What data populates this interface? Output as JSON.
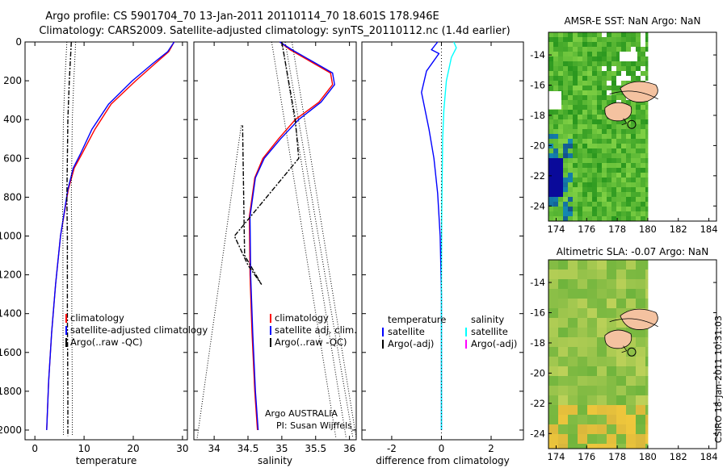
{
  "header": {
    "line1": "Argo profile: CS 5901704_70 13-Jan-2011 20110114_70 18.601S 178.946E",
    "line2": "Climatology: CARS2009. Satellite-adjusted climatology: synTS_20110112.nc (1.4d earlier)"
  },
  "side_label": "CSIRO 18-Jan-2011 10:31:03",
  "colors": {
    "climatology": "#ff0000",
    "satellite": "#0000ff",
    "argo": "#000000",
    "salinity_satellite": "#00ffff",
    "salinity_argo": "#ff00ff"
  },
  "chart_data": [
    {
      "type": "line",
      "xlabel": "temperature",
      "ylabel": "",
      "xlim": [
        -2,
        31
      ],
      "ylim": [
        2050,
        0
      ],
      "xticks": [
        "0",
        "10",
        "20",
        "30"
      ],
      "yticks": [
        "0",
        "200",
        "400",
        "600",
        "800",
        "1000",
        "1200",
        "1400",
        "1600",
        "1800",
        "2000"
      ],
      "legend": [
        "climatology",
        "satellite-adjusted climatology",
        "Argo(..raw -QC)"
      ],
      "series": [
        {
          "name": "climatology",
          "x": [
            28.3,
            27.2,
            24.5,
            20.5,
            15.5,
            12.2,
            9.5,
            8.0,
            6.8,
            5.2,
            4.2,
            3.4,
            2.8,
            2.4
          ],
          "y": [
            0,
            50,
            110,
            200,
            320,
            450,
            580,
            650,
            760,
            1000,
            1250,
            1500,
            1750,
            2000
          ]
        },
        {
          "name": "satellite-adjusted climatology",
          "x": [
            28.3,
            27.0,
            24.0,
            19.8,
            15.0,
            11.6,
            9.2,
            7.8,
            6.7,
            5.2,
            4.2,
            3.4,
            2.8,
            2.4
          ],
          "y": [
            0,
            50,
            110,
            200,
            320,
            450,
            580,
            650,
            760,
            1000,
            1250,
            1500,
            1750,
            2000
          ]
        },
        {
          "name": "Argo(..raw -QC)",
          "x": [
            7.4,
            7.0,
            6.7,
            6.6,
            6.5,
            6.6,
            6.6,
            6.7,
            6.7
          ],
          "y": [
            0,
            200,
            400,
            600,
            800,
            1000,
            1400,
            1800,
            2030
          ]
        }
      ]
    },
    {
      "type": "line",
      "xlabel": "salinity",
      "ylabel": "",
      "xlim": [
        33.7,
        36.1
      ],
      "ylim": [
        2050,
        0
      ],
      "xticks": [
        "34",
        "34.5",
        "35",
        "35.5",
        "36"
      ],
      "legend": [
        "climatology",
        "satellite adj. clim.",
        "Argo(..raw -QC)"
      ],
      "annotations": [
        "Argo AUSTRALIA",
        "PI: Susan Wijffels"
      ],
      "series": [
        {
          "name": "climatology",
          "x": [
            34.97,
            35.12,
            35.42,
            35.72,
            35.75,
            35.55,
            35.2,
            34.95,
            34.72,
            34.6,
            34.52,
            34.53,
            34.56,
            34.6,
            34.64
          ],
          "y": [
            0,
            40,
            100,
            160,
            220,
            310,
            400,
            500,
            600,
            700,
            900,
            1200,
            1500,
            1800,
            2000
          ]
        },
        {
          "name": "satellite adj. clim.",
          "x": [
            34.97,
            35.15,
            35.45,
            35.75,
            35.78,
            35.58,
            35.25,
            34.98,
            34.74,
            34.61,
            34.53,
            34.54,
            34.57,
            34.61,
            34.65
          ],
          "y": [
            0,
            40,
            100,
            160,
            220,
            310,
            400,
            500,
            600,
            700,
            900,
            1200,
            1500,
            1800,
            2000
          ]
        },
        {
          "name": "Argo(..raw -QC)",
          "x": [
            35.0,
            35.1,
            35.2,
            35.25,
            34.3,
            34.5,
            34.7,
            34.45,
            34.42
          ],
          "y": [
            0,
            200,
            400,
            600,
            1000,
            1150,
            1250,
            1100,
            430
          ]
        }
      ]
    },
    {
      "type": "line",
      "xlabel": "difference from climatology",
      "ylabel": "",
      "xlim": [
        -3.2,
        3.3
      ],
      "ylim": [
        2050,
        0
      ],
      "xticks": [
        "-2",
        "0",
        "2"
      ],
      "legend": [
        "temperature",
        "satellite",
        "Argo(-adj)",
        "salinity",
        "satellite",
        "Argo(-adj)"
      ],
      "series": [
        {
          "name": "temperature satellite",
          "x": [
            -0.15,
            -0.4,
            -0.1,
            -0.6,
            -0.8,
            -0.5,
            -0.3,
            -0.15,
            -0.05,
            0.0,
            0.0,
            0.0
          ],
          "y": [
            0,
            40,
            60,
            150,
            260,
            450,
            600,
            780,
            1000,
            1300,
            1700,
            2000
          ]
        },
        {
          "name": "salinity satellite",
          "x": [
            0.5,
            0.6,
            0.4,
            0.2,
            0.1,
            0.05,
            0.03,
            0.01,
            0.0,
            0.0,
            0.0
          ],
          "y": [
            0,
            30,
            80,
            200,
            350,
            500,
            700,
            900,
            1200,
            1600,
            2000
          ]
        }
      ]
    },
    {
      "type": "heatmap",
      "title": "AMSR-E SST: NaN Argo: NaN",
      "xticks": [
        "174",
        "176",
        "178",
        "180",
        "182",
        "184"
      ],
      "yticks": [
        "-14",
        "-16",
        "-18",
        "-20",
        "-22",
        "-24"
      ],
      "xlim": [
        173.5,
        184.5
      ],
      "ylim": [
        -25,
        -12.5
      ]
    },
    {
      "type": "heatmap",
      "title": "Altimetric SLA: -0.07 Argo: NaN",
      "xticks": [
        "174",
        "176",
        "178",
        "180",
        "182",
        "184"
      ],
      "yticks": [
        "-14",
        "-16",
        "-18",
        "-20",
        "-22",
        "-24"
      ],
      "xlim": [
        173.5,
        184.5
      ],
      "ylim": [
        -25,
        -12.5
      ]
    }
  ]
}
